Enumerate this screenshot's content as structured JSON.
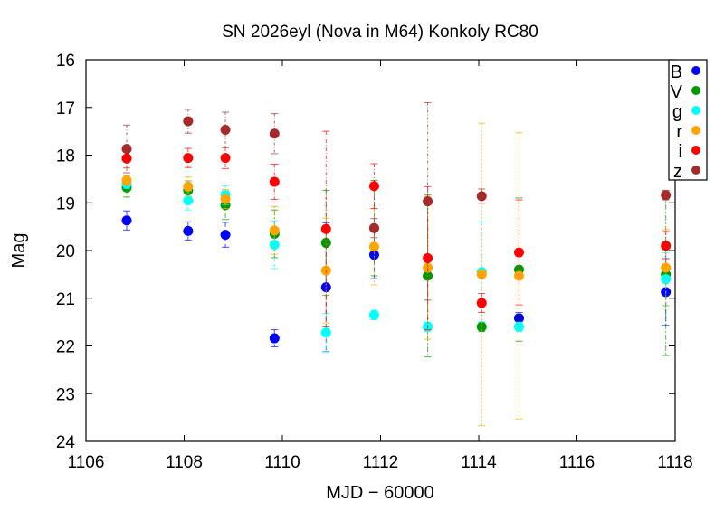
{
  "chart_data": {
    "type": "scatter",
    "title": "SN 2026eyl (Nova in M64) Konkoly RC80",
    "xlabel": "MJD − 60000",
    "ylabel": "Mag",
    "xlim": [
      1106,
      1118
    ],
    "ylim": [
      24,
      16
    ],
    "y_inverted": true,
    "xticks": [
      "1106",
      "1108",
      "1110",
      "1112",
      "1114",
      "1116",
      "1118"
    ],
    "yticks": [
      "16",
      "17",
      "18",
      "19",
      "20",
      "21",
      "22",
      "23",
      "24"
    ],
    "grid": false,
    "legend_placement": "top-right",
    "series": [
      {
        "name": "B",
        "color": "#0000ff",
        "x": [
          1106.83,
          1108.08,
          1108.84,
          1109.84,
          1110.89,
          1111.87,
          1114.82,
          1117.81
        ],
        "y": [
          19.37,
          19.59,
          19.67,
          21.84,
          20.77,
          20.09,
          21.42,
          20.87
        ],
        "err": [
          0.2,
          0.19,
          0.26,
          0.18,
          1.35,
          0.5,
          0.12,
          0.7
        ]
      },
      {
        "name": "V",
        "color": "#009900",
        "x": [
          1106.83,
          1108.08,
          1108.84,
          1109.84,
          1110.89,
          1111.87,
          1112.96,
          1114.06,
          1114.82,
          1117.81
        ],
        "y": [
          18.68,
          18.74,
          19.05,
          19.65,
          19.84,
          19.53,
          20.53,
          21.6,
          20.4,
          20.5
        ],
        "err": [
          0.2,
          0.2,
          0.3,
          0.5,
          1.1,
          1.0,
          1.7,
          0.1,
          1.5,
          1.7
        ]
      },
      {
        "name": "g",
        "color": "#00ffff",
        "x": [
          1106.83,
          1108.08,
          1108.84,
          1109.84,
          1110.89,
          1111.87,
          1112.96,
          1114.06,
          1114.82,
          1117.81
        ],
        "y": [
          18.6,
          18.95,
          18.84,
          19.88,
          21.72,
          21.35,
          21.6,
          20.45,
          21.6,
          20.6
        ],
        "err": [
          0.1,
          0.2,
          0.2,
          0.5,
          0.4,
          0.1,
          0.1,
          1.05,
          0.1,
          0.55
        ]
      },
      {
        "name": "r",
        "color": "#ffa500",
        "x": [
          1106.83,
          1108.08,
          1108.84,
          1109.84,
          1110.89,
          1111.87,
          1112.96,
          1114.06,
          1114.82,
          1117.81
        ],
        "y": [
          18.53,
          18.66,
          18.92,
          19.58,
          20.42,
          19.92,
          20.36,
          20.5,
          20.53,
          20.36
        ],
        "err": [
          0.1,
          0.2,
          0.2,
          0.5,
          1.1,
          0.8,
          1.5,
          3.17,
          3.0,
          0.8
        ]
      },
      {
        "name": "i",
        "color": "#ff0000",
        "x": [
          1106.83,
          1108.08,
          1108.84,
          1109.84,
          1110.89,
          1111.87,
          1112.96,
          1114.06,
          1114.82,
          1117.81
        ],
        "y": [
          18.07,
          18.06,
          18.06,
          18.56,
          19.55,
          18.65,
          20.16,
          21.1,
          20.04,
          19.9
        ],
        "err": [
          0.2,
          0.2,
          0.22,
          0.37,
          2.05,
          0.47,
          1.5,
          0.2,
          1.1,
          0.3
        ]
      },
      {
        "name": "z",
        "color": "#a52a2a",
        "x": [
          1106.83,
          1108.08,
          1108.84,
          1109.84,
          1111.87,
          1112.96,
          1114.06,
          1117.81
        ],
        "y": [
          17.87,
          17.29,
          17.47,
          17.55,
          19.53,
          18.97,
          18.86,
          18.84
        ],
        "err": [
          0.5,
          0.25,
          0.37,
          0.42,
          0.2,
          2.07,
          0.15,
          0.1
        ]
      }
    ]
  }
}
